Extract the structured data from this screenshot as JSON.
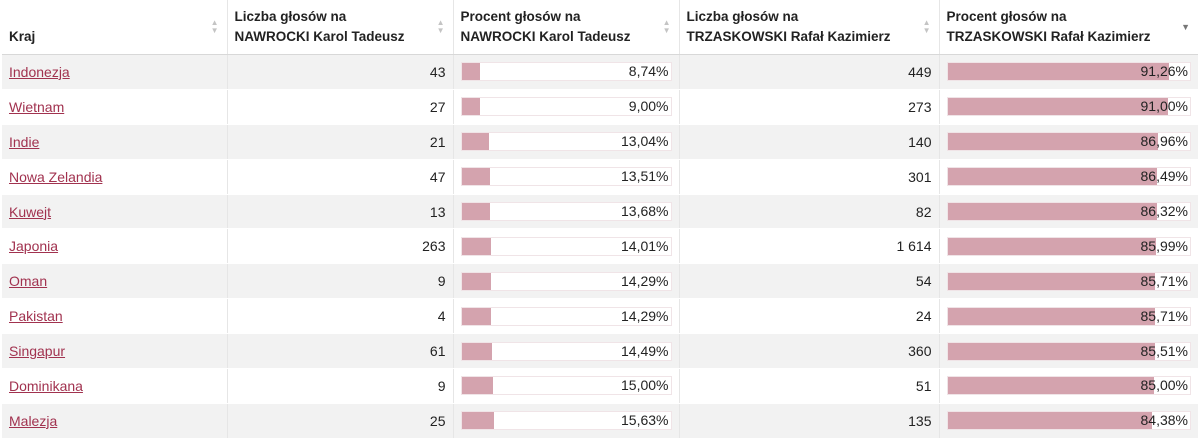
{
  "columns": [
    {
      "key": "kraj",
      "line1": "Kraj",
      "line2": "",
      "sort": "none"
    },
    {
      "key": "n1",
      "line1": "Liczba głosów na",
      "line2": "NAWROCKI Karol Tadeusz",
      "sort": "none"
    },
    {
      "key": "p1",
      "line1": "Procent głosów na",
      "line2": "NAWROCKI Karol Tadeusz",
      "sort": "none"
    },
    {
      "key": "n2",
      "line1": "Liczba głosów na",
      "line2": "TRZASKOWSKI Rafał Kazimierz",
      "sort": "none"
    },
    {
      "key": "p2",
      "line1": "Procent głosów na",
      "line2": "TRZASKOWSKI Rafał Kazimierz",
      "sort": "desc"
    }
  ],
  "rows": [
    {
      "kraj": "Indonezja",
      "n1": "43",
      "p1": "8,74%",
      "p1_value": 8.74,
      "n2": "449",
      "p2": "91,26%",
      "p2_value": 91.26
    },
    {
      "kraj": "Wietnam",
      "n1": "27",
      "p1": "9,00%",
      "p1_value": 9.0,
      "n2": "273",
      "p2": "91,00%",
      "p2_value": 91.0
    },
    {
      "kraj": "Indie",
      "n1": "21",
      "p1": "13,04%",
      "p1_value": 13.04,
      "n2": "140",
      "p2": "86,96%",
      "p2_value": 86.96
    },
    {
      "kraj": "Nowa Zelandia",
      "n1": "47",
      "p1": "13,51%",
      "p1_value": 13.51,
      "n2": "301",
      "p2": "86,49%",
      "p2_value": 86.49
    },
    {
      "kraj": "Kuwejt",
      "n1": "13",
      "p1": "13,68%",
      "p1_value": 13.68,
      "n2": "82",
      "p2": "86,32%",
      "p2_value": 86.32
    },
    {
      "kraj": "Japonia",
      "n1": "263",
      "p1": "14,01%",
      "p1_value": 14.01,
      "n2": "1 614",
      "p2": "85,99%",
      "p2_value": 85.99
    },
    {
      "kraj": "Oman",
      "n1": "9",
      "p1": "14,29%",
      "p1_value": 14.29,
      "n2": "54",
      "p2": "85,71%",
      "p2_value": 85.71
    },
    {
      "kraj": "Pakistan",
      "n1": "4",
      "p1": "14,29%",
      "p1_value": 14.29,
      "n2": "24",
      "p2": "85,71%",
      "p2_value": 85.71
    },
    {
      "kraj": "Singapur",
      "n1": "61",
      "p1": "14,49%",
      "p1_value": 14.49,
      "n2": "360",
      "p2": "85,51%",
      "p2_value": 85.51
    },
    {
      "kraj": "Dominikana",
      "n1": "9",
      "p1": "15,00%",
      "p1_value": 15.0,
      "n2": "51",
      "p2": "85,00%",
      "p2_value": 85.0
    },
    {
      "kraj": "Malezja",
      "n1": "25",
      "p1": "15,63%",
      "p1_value": 15.63,
      "n2": "135",
      "p2": "84,38%",
      "p2_value": 84.38
    }
  ],
  "icons": {
    "sort_unsorted": "sort-updown-icon",
    "sort_desc": "sort-desc-icon"
  },
  "colors": {
    "link": "#a1324f",
    "bar": "#d4a3ae",
    "row_alt": "#f2f2f2"
  }
}
